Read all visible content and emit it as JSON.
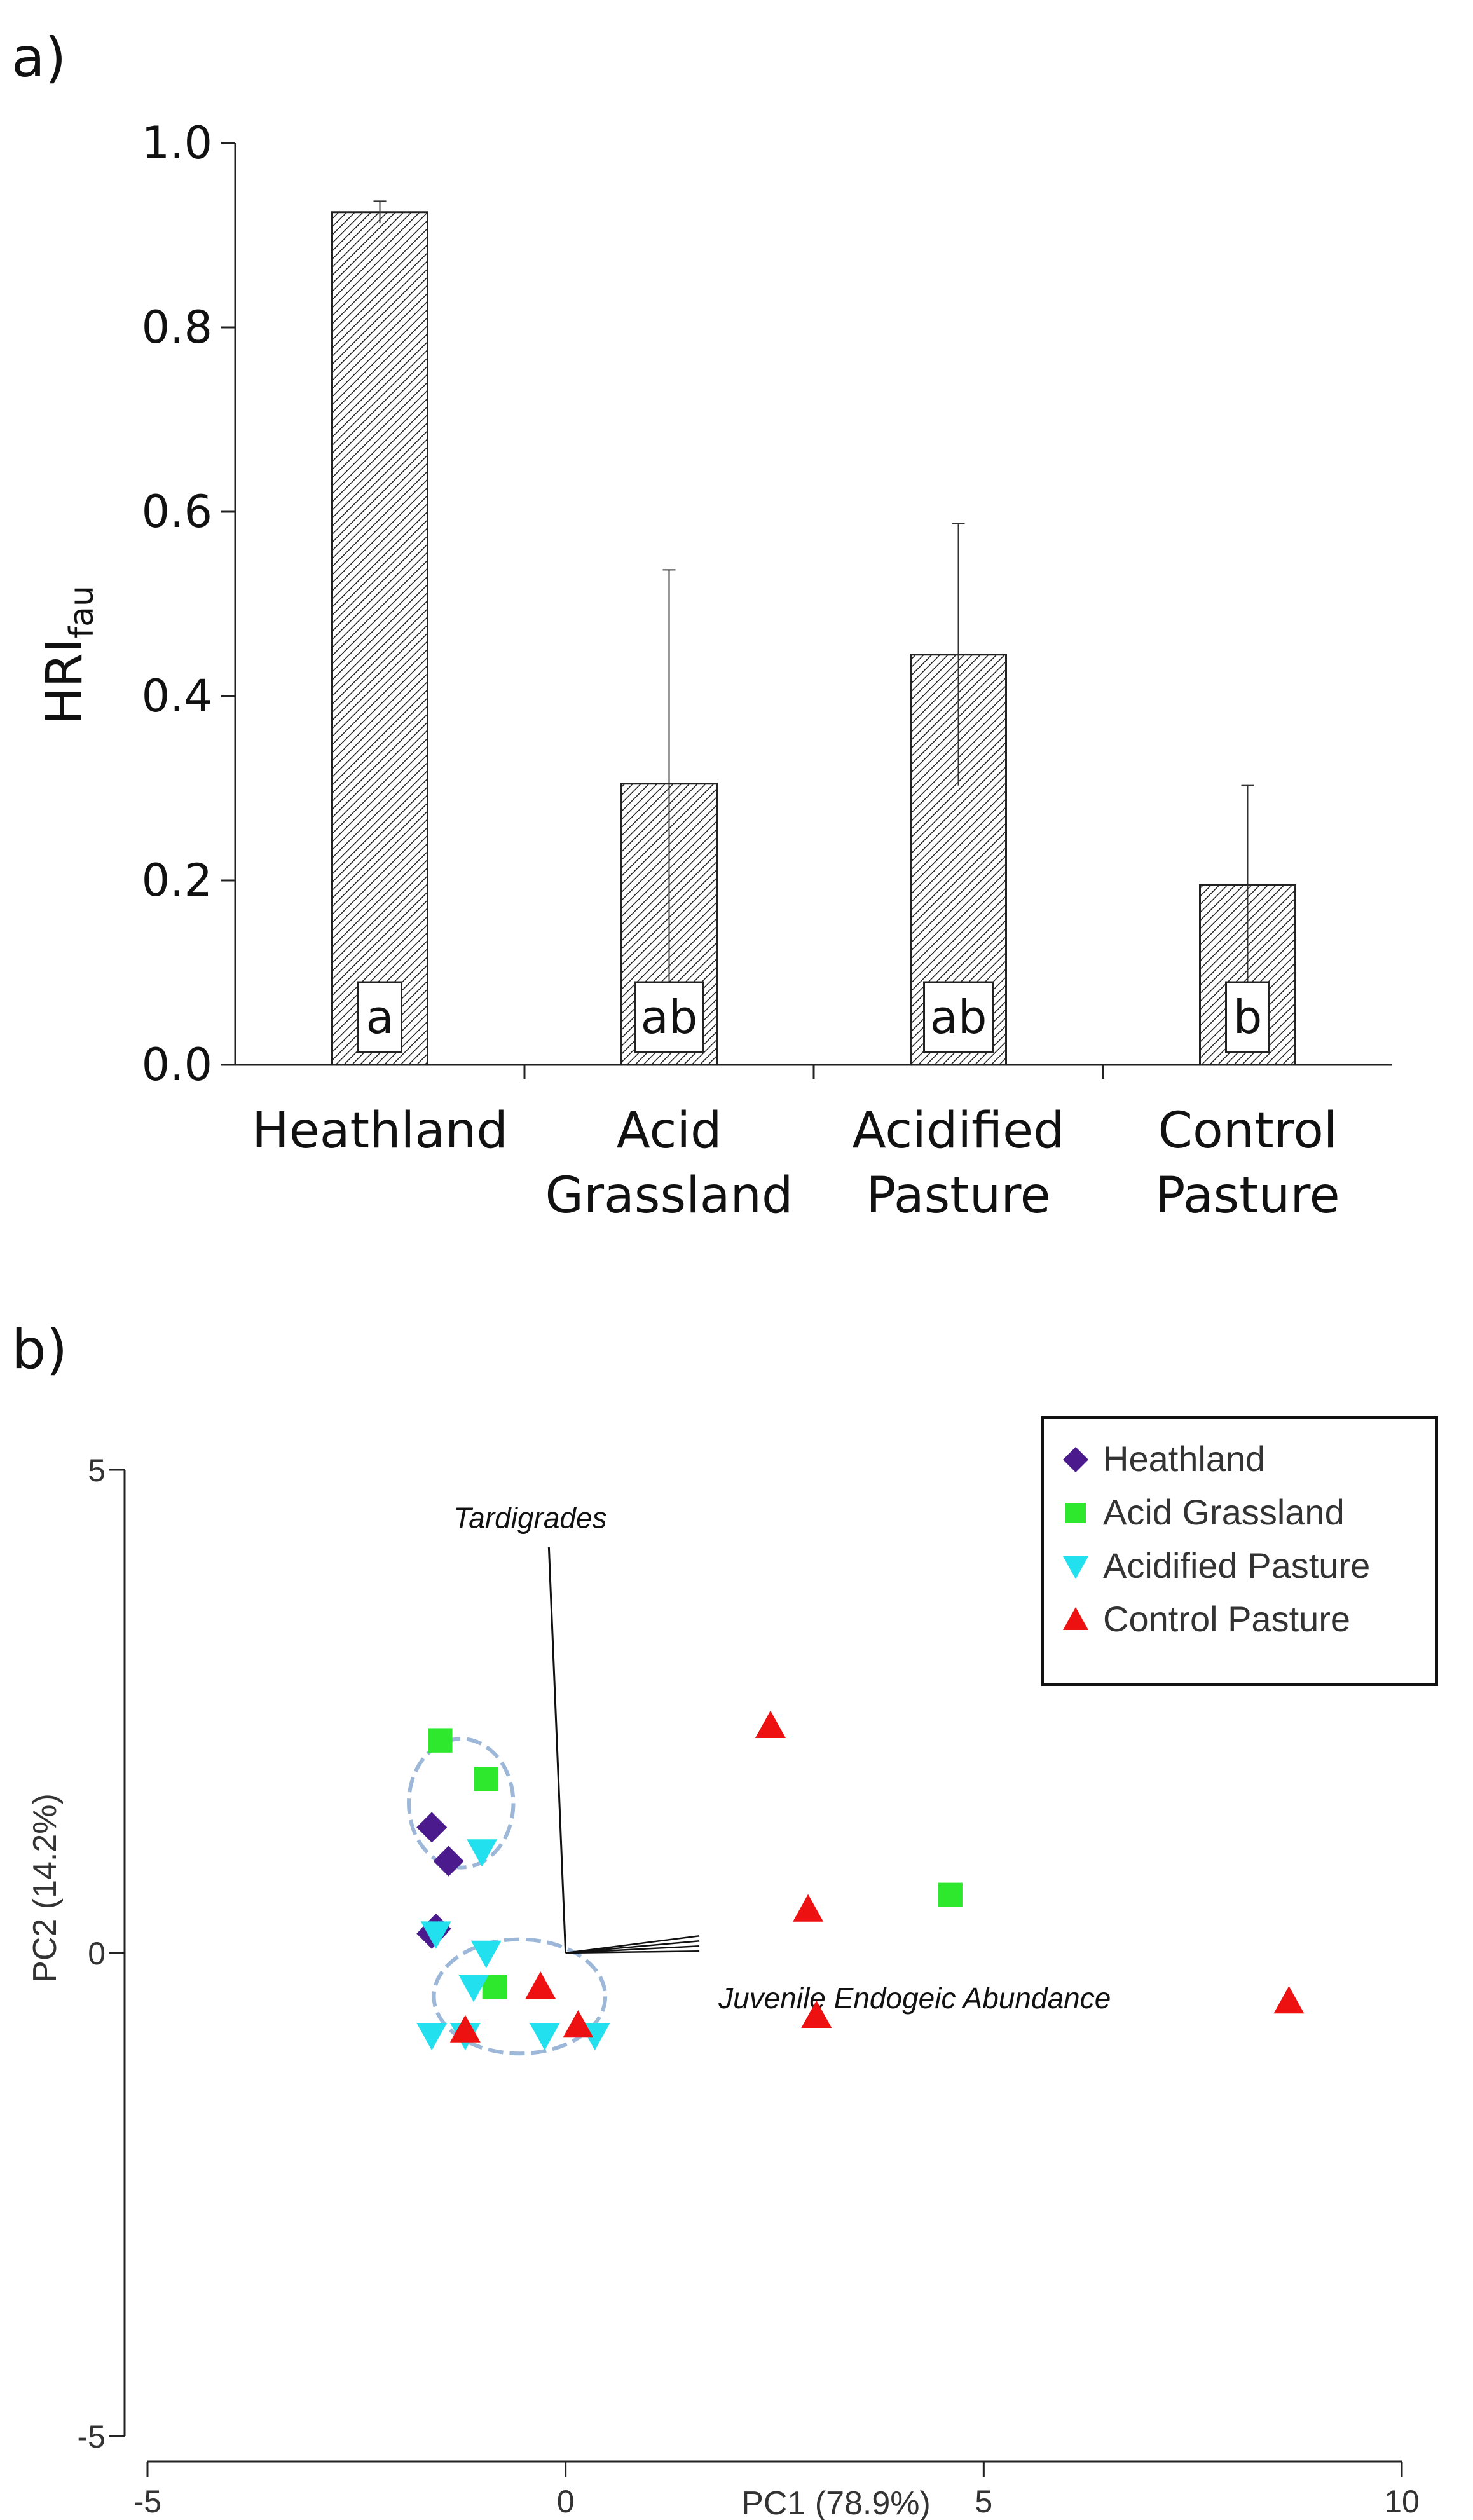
{
  "panel_a": {
    "label": "a)",
    "ylabel_main": "HRI",
    "ylabel_sub": "fau"
  },
  "panel_b": {
    "label": "b)",
    "xlabel": "PC1 (78.9%)",
    "ylabel": "PC2 (14.2%)",
    "vector_labels": [
      "Tardigrades",
      "Juvenile Endogeic Abundance"
    ]
  },
  "colors": {
    "heathland": "#4b1a8c",
    "acid_grassland": "#2ee82e",
    "acidified_pasture": "#22e0ee",
    "control_pasture": "#ee1111",
    "ellipse": "#9db7d8"
  },
  "chart_data": [
    {
      "type": "bar",
      "categories": [
        "Heathland",
        "Acid Grassland",
        "Acidified Pasture",
        "Control Pasture"
      ],
      "category_lines": [
        [
          "Heathland"
        ],
        [
          "Acid",
          "Grassland"
        ],
        [
          "Acidified",
          "Pasture"
        ],
        [
          "Control",
          "Pasture"
        ]
      ],
      "values": [
        0.925,
        0.305,
        0.445,
        0.195
      ],
      "error": [
        0.012,
        0.232,
        0.142,
        0.108
      ],
      "letters": [
        "a",
        "ab",
        "ab",
        "b"
      ],
      "ylim": [
        0,
        1.0
      ],
      "yticks": [
        "0.0",
        "0.2",
        "0.4",
        "0.6",
        "0.8",
        "1.0"
      ],
      "pattern": "diagonal hatch",
      "grid": false
    },
    {
      "type": "scatter",
      "xlim": [
        -5,
        10
      ],
      "ylim": [
        -5,
        5
      ],
      "xticks": [
        "-5",
        "0",
        "5",
        "10"
      ],
      "yticks": [
        "5",
        "0",
        "-5"
      ],
      "legend_position": "top-right",
      "series": [
        {
          "name": "Heathland",
          "marker": "diamond",
          "colorKey": "heathland",
          "points": [
            [
              -1.6,
              1.3
            ],
            [
              -1.4,
              0.95
            ],
            [
              -1.55,
              0.25
            ],
            [
              -1.6,
              0.2
            ]
          ]
        },
        {
          "name": "Acid Grassland",
          "marker": "square",
          "colorKey": "acid_grassland",
          "points": [
            [
              -1.5,
              2.2
            ],
            [
              -0.95,
              1.8
            ],
            [
              -0.85,
              -0.35
            ],
            [
              4.6,
              0.6
            ]
          ]
        },
        {
          "name": "Acidified Pasture",
          "marker": "triangle-down",
          "colorKey": "acidified_pasture",
          "points": [
            [
              -1.0,
              1.05
            ],
            [
              -1.55,
              0.2
            ],
            [
              -0.95,
              0.0
            ],
            [
              -1.1,
              -0.35
            ],
            [
              -1.6,
              -0.85
            ],
            [
              -1.2,
              -0.85
            ],
            [
              -0.25,
              -0.85
            ],
            [
              0.35,
              -0.85
            ]
          ]
        },
        {
          "name": "Control Pasture",
          "marker": "triangle-up",
          "colorKey": "control_pasture",
          "points": [
            [
              2.45,
              2.35
            ],
            [
              2.9,
              0.45
            ],
            [
              3.0,
              -0.65
            ],
            [
              8.65,
              -0.5
            ],
            [
              -0.3,
              -0.35
            ],
            [
              0.15,
              -0.75
            ],
            [
              -1.2,
              -0.8
            ]
          ]
        }
      ],
      "vectors": [
        {
          "label": "Tardigrades",
          "to": [
            -0.2,
            4.2
          ]
        },
        {
          "label": "Juvenile Endogeic Abundance",
          "to": [
            1.6,
            0.15
          ]
        }
      ],
      "ellipses": [
        {
          "center": [
            -1.25,
            1.55
          ],
          "rx": 1.25,
          "ry": 1.2
        },
        {
          "center": [
            -0.55,
            -0.45
          ],
          "rx": 2.05,
          "ry": 1.05
        }
      ]
    }
  ]
}
